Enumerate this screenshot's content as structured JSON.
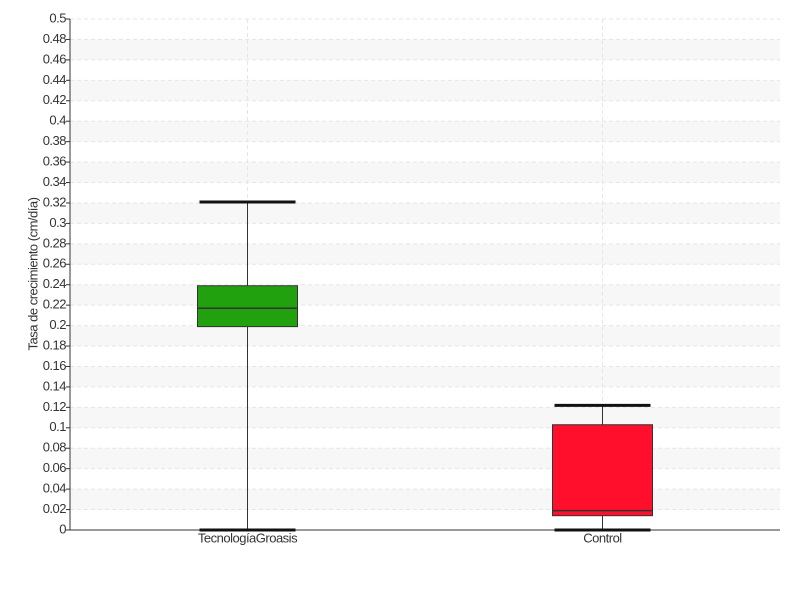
{
  "chart_data": {
    "type": "box",
    "y_label": "Tasa de crecimiento (cm/día)",
    "categories": [
      "TecnologíaGroasis",
      "Control"
    ],
    "boxes": [
      {
        "name": "TecnologíaGroasis",
        "color": "#22a10f",
        "min": 0,
        "q1": 0.199,
        "median": 0.217,
        "q3": 0.239,
        "max": 0.321
      },
      {
        "name": "Control",
        "color": "#ff0f2b",
        "min": 0,
        "q1": 0.014,
        "median": 0.019,
        "q3": 0.103,
        "max": 0.122
      }
    ],
    "ylim": [
      0,
      0.5
    ],
    "yticks": [
      0,
      0.02,
      0.04,
      0.06,
      0.08,
      0.1,
      0.12,
      0.14,
      0.16,
      0.18,
      0.2,
      0.22,
      0.24,
      0.26,
      0.28,
      0.3,
      0.32,
      0.34,
      0.36,
      0.38,
      0.4,
      0.42,
      0.44,
      0.46,
      0.48,
      0.5
    ],
    "grid": true
  }
}
